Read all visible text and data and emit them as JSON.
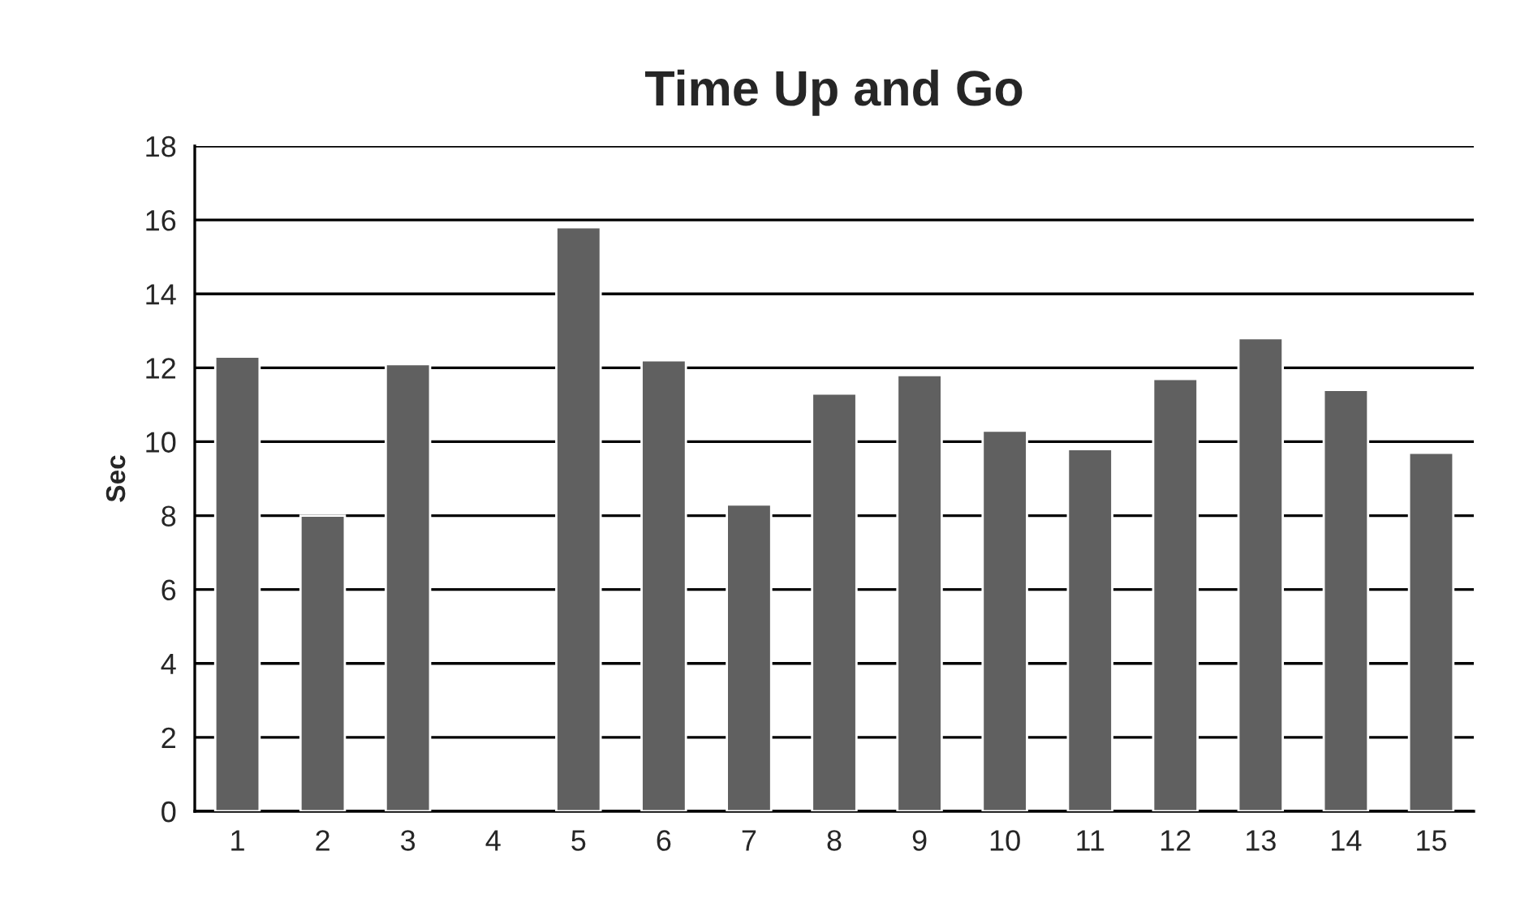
{
  "chart_data": {
    "type": "bar",
    "title": "Time Up and Go",
    "ylabel": "Sec",
    "categories": [
      "1",
      "2",
      "3",
      "4",
      "5",
      "6",
      "7",
      "8",
      "9",
      "10",
      "11",
      "12",
      "13",
      "14",
      "15"
    ],
    "values": [
      12.3,
      8.0,
      12.1,
      null,
      15.8,
      12.2,
      8.3,
      11.3,
      11.8,
      10.3,
      9.8,
      11.7,
      12.8,
      11.4,
      9.7
    ],
    "color": "#606060",
    "ylim": [
      0,
      18
    ],
    "yticks": [
      0,
      2,
      4,
      6,
      8,
      10,
      12,
      14,
      16,
      18
    ],
    "grid": "y"
  }
}
